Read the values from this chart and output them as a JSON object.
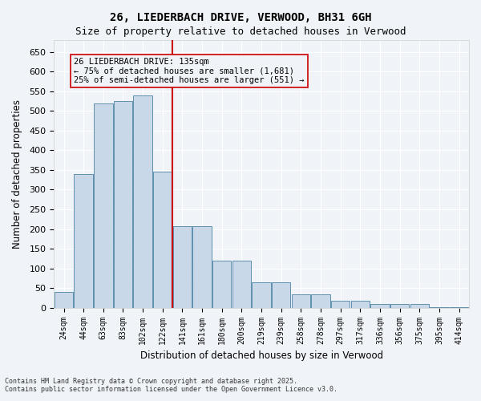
{
  "title": "26, LIEDERBACH DRIVE, VERWOOD, BH31 6GH",
  "subtitle": "Size of property relative to detached houses in Verwood",
  "xlabel": "Distribution of detached houses by size in Verwood",
  "ylabel": "Number of detached properties",
  "categories": [
    "24sqm",
    "44sqm",
    "63sqm",
    "83sqm",
    "102sqm",
    "122sqm",
    "141sqm",
    "161sqm",
    "180sqm",
    "200sqm",
    "219sqm",
    "239sqm",
    "258sqm",
    "278sqm",
    "297sqm",
    "317sqm",
    "336sqm",
    "356sqm",
    "375sqm",
    "395sqm",
    "414sqm"
  ],
  "values": [
    40,
    340,
    520,
    525,
    540,
    345,
    207,
    207,
    120,
    120,
    65,
    65,
    35,
    35,
    17,
    17,
    10,
    10,
    10,
    2,
    2
  ],
  "bar_color": "#c8d8e8",
  "bar_edge_color": "#6090b0",
  "property_line_x": 5,
  "property_line_label": "26 LIEDERBACH DRIVE: 135sqm",
  "annotation_line1": "← 75% of detached houses are smaller (1,681)",
  "annotation_line2": "25% of semi-detached houses are larger (551) →",
  "vline_color": "#cc0000",
  "annotation_box_edge": "#cc0000",
  "ylim": [
    0,
    680
  ],
  "yticks": [
    0,
    50,
    100,
    150,
    200,
    250,
    300,
    350,
    400,
    450,
    500,
    550,
    600,
    650
  ],
  "background_color": "#f0f4f8",
  "grid_color": "#ffffff",
  "footer_line1": "Contains HM Land Registry data © Crown copyright and database right 2025.",
  "footer_line2": "Contains public sector information licensed under the Open Government Licence v3.0."
}
